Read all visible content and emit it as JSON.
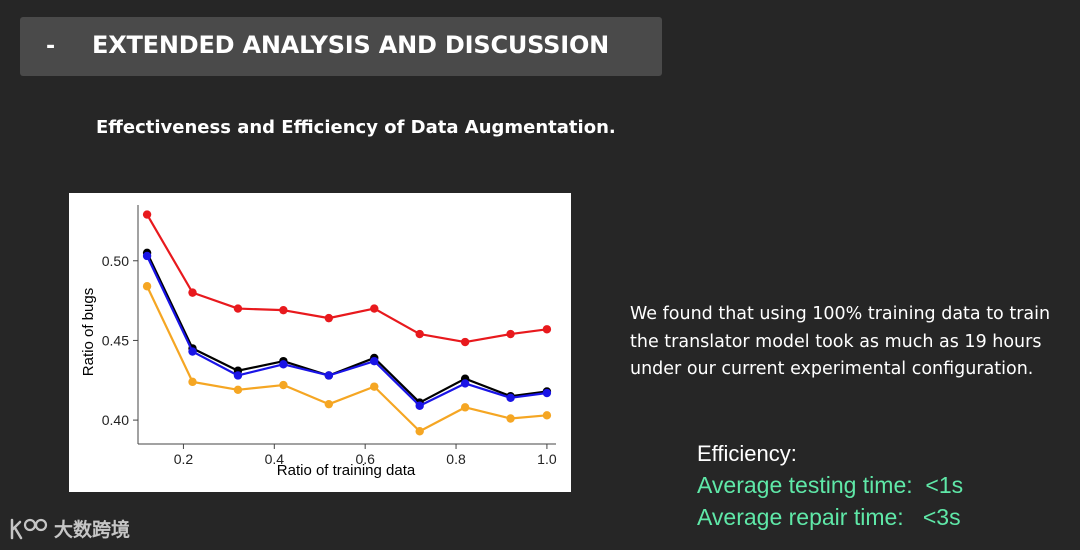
{
  "header": {
    "dash": "-",
    "title": "EXTENDED ANALYSIS AND DISCUSSION"
  },
  "subtitle": "Effectiveness and Efficiency of Data Augmentation.",
  "paragraph": "We found that using 100% training data to train the translator model took as much as 19 hours under our current experimental configuration.",
  "efficiency": {
    "heading": "Efficiency:",
    "testing": "Average testing time:  <1s",
    "repair": "Average repair time:   <3s"
  },
  "watermark": {
    "text": "大数跨境"
  },
  "colors": {
    "background": "#262626",
    "header_bar": "#4a4a4a",
    "highlight": "#5fe8a8"
  },
  "chart_data": {
    "type": "line",
    "xlabel": "Ratio of training data",
    "ylabel": "Ratio of bugs",
    "xlim": [
      0.1,
      1.02
    ],
    "ylim": [
      0.385,
      0.535
    ],
    "xticks": [
      0.2,
      0.4,
      0.6,
      0.8,
      1.0
    ],
    "xtick_labels": [
      "0.2",
      "0.4",
      "0.6",
      "0.8",
      "1.0"
    ],
    "yticks": [
      0.4,
      0.45,
      0.5
    ],
    "ytick_labels": [
      "0.40",
      "0.45",
      "0.50"
    ],
    "grid": false,
    "x": [
      0.12,
      0.22,
      0.32,
      0.42,
      0.52,
      0.62,
      0.72,
      0.82,
      0.92,
      1.0
    ],
    "series": [
      {
        "color": "#e8191d",
        "values": [
          0.529,
          0.48,
          0.47,
          0.469,
          0.464,
          0.47,
          0.454,
          0.449,
          0.454,
          0.457
        ]
      },
      {
        "color": "#000000",
        "values": [
          0.505,
          0.445,
          0.431,
          0.437,
          0.428,
          0.439,
          0.411,
          0.426,
          0.415,
          0.418
        ]
      },
      {
        "color": "#1a14e6",
        "values": [
          0.503,
          0.443,
          0.428,
          0.435,
          0.428,
          0.437,
          0.409,
          0.423,
          0.414,
          0.417
        ]
      },
      {
        "color": "#f5a623",
        "values": [
          0.484,
          0.424,
          0.419,
          0.422,
          0.41,
          0.421,
          0.393,
          0.408,
          0.401,
          0.403
        ]
      }
    ]
  }
}
